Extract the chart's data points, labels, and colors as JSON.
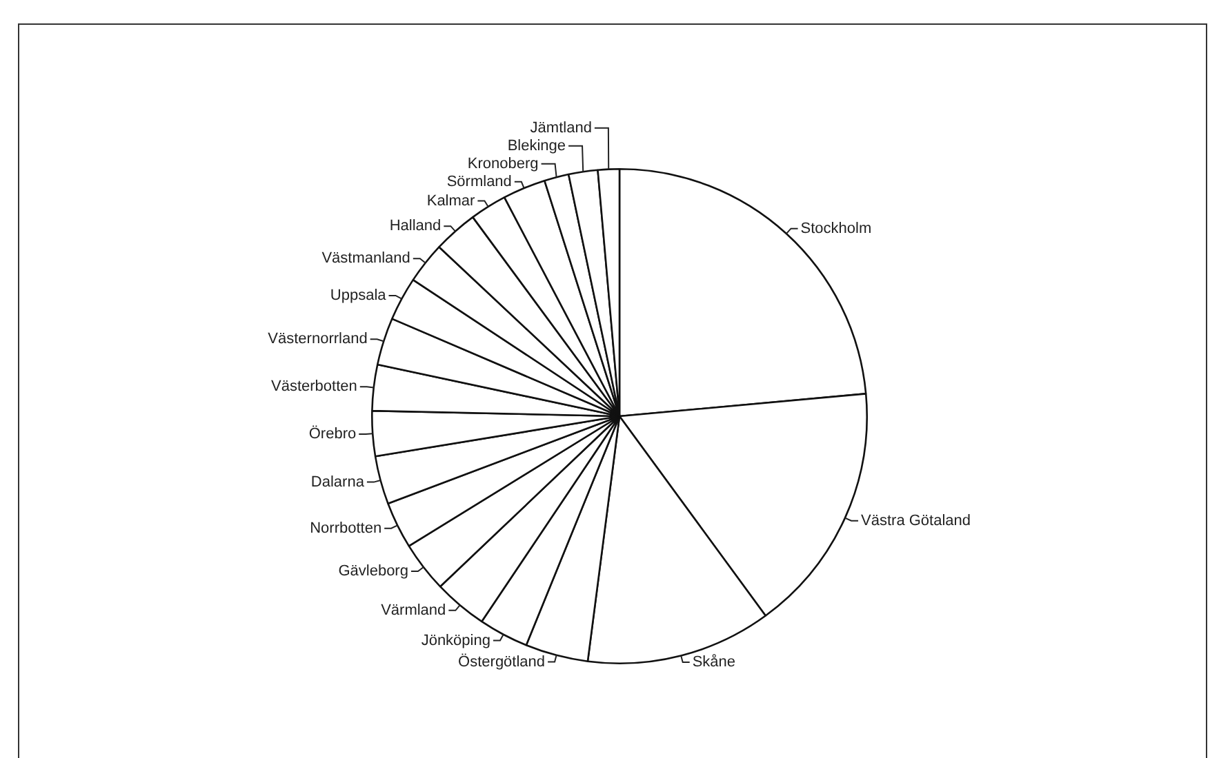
{
  "chart_data": {
    "type": "pie",
    "categories": [
      "Stockholm",
      "Västra Götaland",
      "Skåne",
      "Östergötland",
      "Jönköping",
      "Värmland",
      "Gävleborg",
      "Norrbotten",
      "Dalarna",
      "Örebro",
      "Västerbotten",
      "Västernorrland",
      "Uppsala",
      "Västmanland",
      "Halland",
      "Kalmar",
      "Sörmland",
      "Kronoberg",
      "Blekinge",
      "Jämtland"
    ],
    "values": [
      23.55,
      16.4,
      12.1,
      4.1,
      3.25,
      3.5,
      3.3,
      3.05,
      3.15,
      2.95,
      3.0,
      3.1,
      2.85,
      2.7,
      2.9,
      2.4,
      2.8,
      1.6,
      1.9,
      1.4
    ],
    "colors": [
      "#ffffff",
      "#ffffff",
      "#ffffff",
      "#ffffff",
      "#ffffff",
      "#ffffff",
      "#ffffff",
      "#ffffff",
      "#ffffff",
      "#ffffff",
      "#ffffff",
      "#ffffff",
      "#ffffff",
      "#ffffff",
      "#ffffff",
      "#ffffff",
      "#ffffff",
      "#ffffff",
      "#ffffff",
      "#ffffff"
    ],
    "legend": false
  }
}
